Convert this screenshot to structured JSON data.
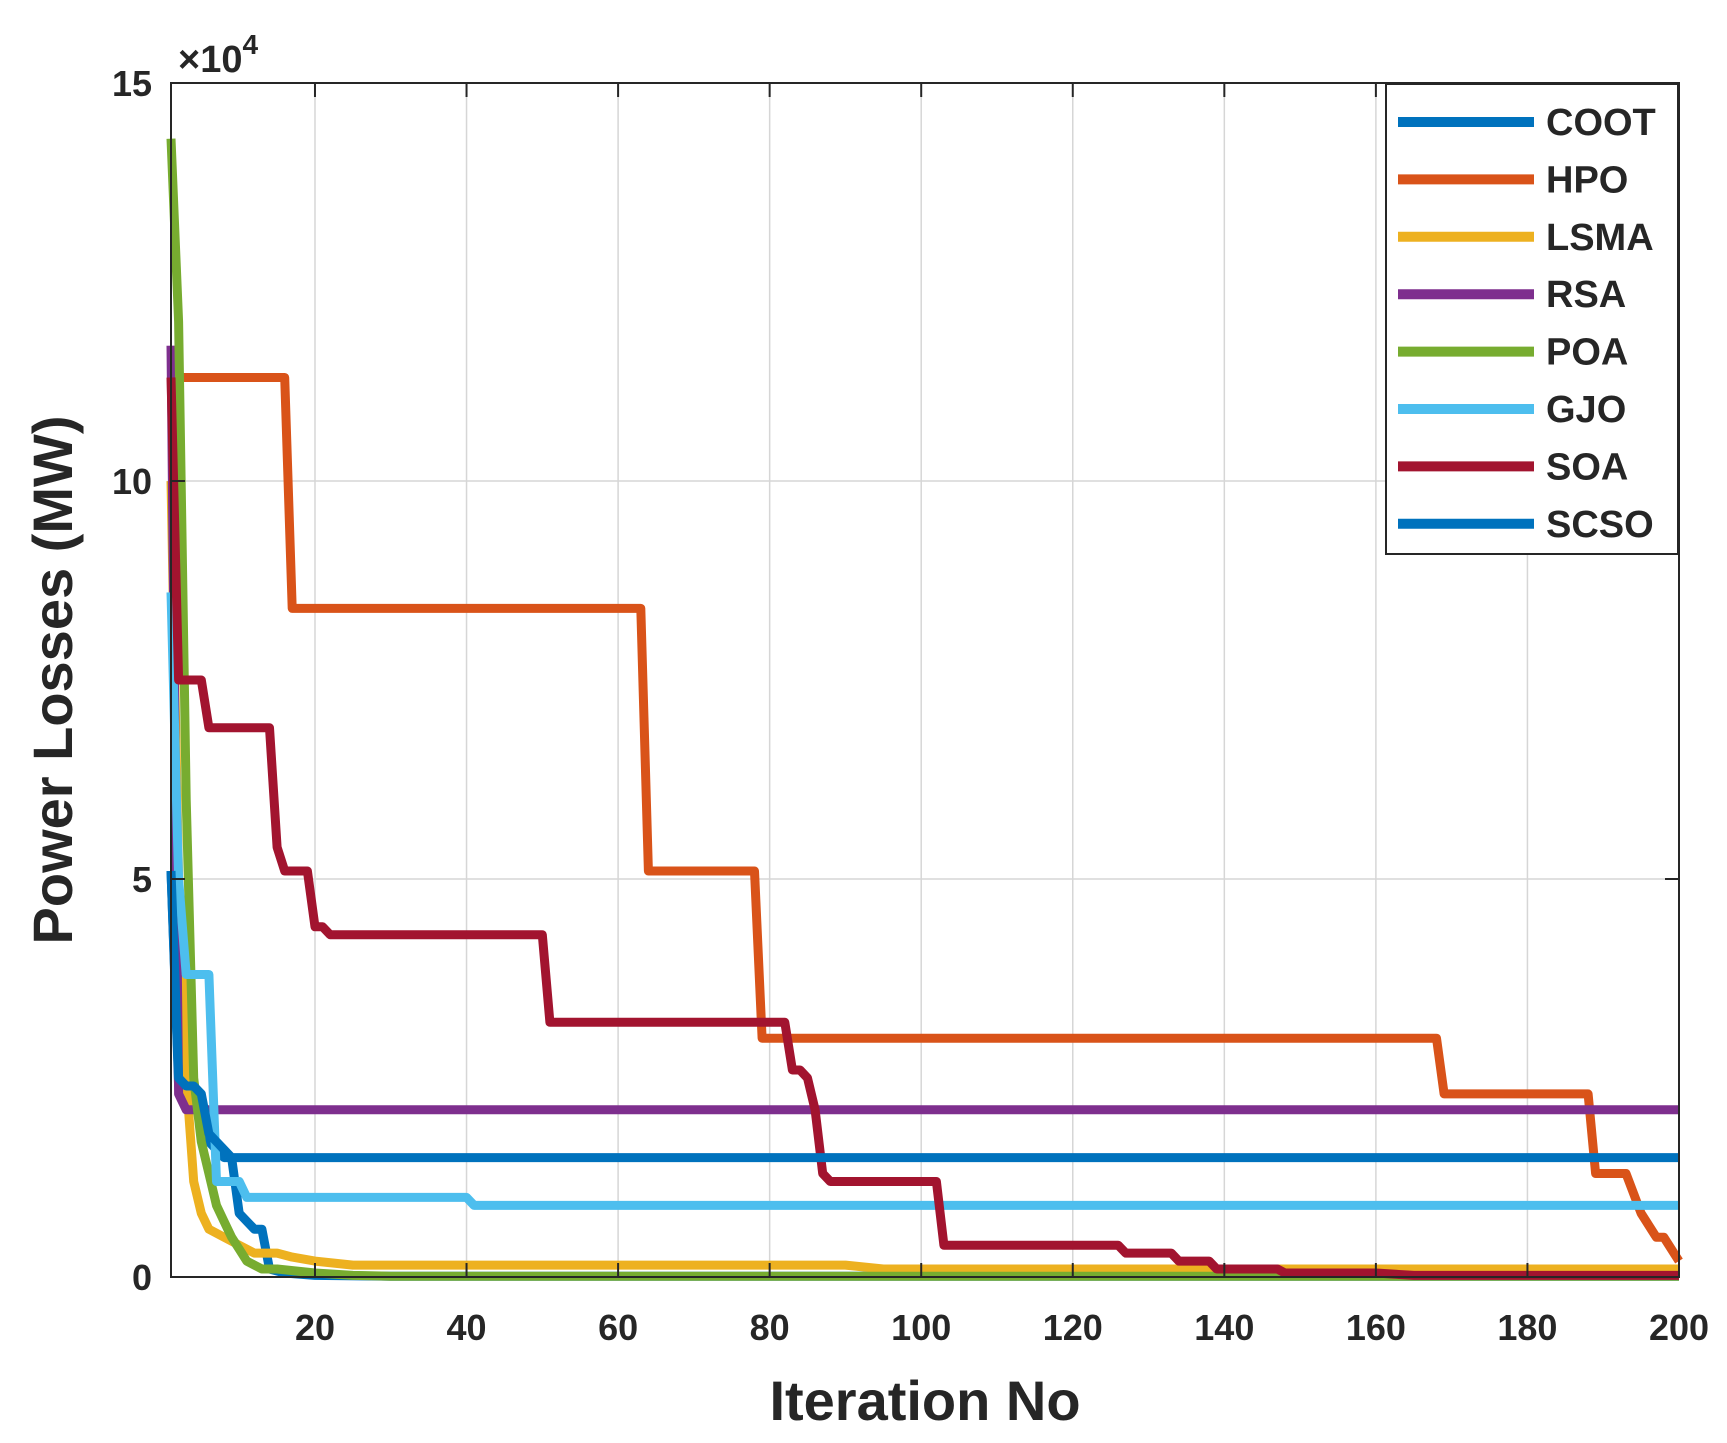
{
  "chart_data": {
    "type": "line",
    "title": "",
    "xlabel": "Iteration No",
    "ylabel": "Power Losses (MW)",
    "y_exponent_label": "×10",
    "y_exponent_power": "4",
    "xlim": [
      1,
      200
    ],
    "ylim": [
      0,
      15
    ],
    "xticks": [
      20,
      40,
      60,
      80,
      100,
      120,
      140,
      160,
      180,
      200
    ],
    "xtick_labels": [
      "20",
      "40",
      "60",
      "80",
      "100",
      "120",
      "140",
      "160",
      "180",
      "200"
    ],
    "yticks": [
      0,
      5,
      10,
      15
    ],
    "ytick_labels": [
      "0",
      "5",
      "10",
      "15"
    ],
    "grid": true,
    "legend_position": "top-right",
    "series": [
      {
        "name": "COOT",
        "color": "#0072BD",
        "points": [
          [
            1,
            5.1
          ],
          [
            2,
            2.4
          ],
          [
            3,
            2.3
          ],
          [
            4,
            2.2
          ],
          [
            5,
            2.2
          ],
          [
            6,
            1.7
          ],
          [
            7,
            1.6
          ],
          [
            8,
            1.5
          ],
          [
            9,
            1.5
          ],
          [
            10,
            0.8
          ],
          [
            11,
            0.7
          ],
          [
            12,
            0.6
          ],
          [
            13,
            0.6
          ],
          [
            14,
            0.1
          ],
          [
            16,
            0.05
          ],
          [
            20,
            0.02
          ],
          [
            30,
            0.01
          ],
          [
            200,
            0.01
          ]
        ]
      },
      {
        "name": "HPO",
        "color": "#D95319",
        "points": [
          [
            1,
            11.3
          ],
          [
            16,
            11.3
          ],
          [
            17,
            8.4
          ],
          [
            63,
            8.4
          ],
          [
            64,
            5.1
          ],
          [
            78,
            5.1
          ],
          [
            79,
            3.0
          ],
          [
            168,
            3.0
          ],
          [
            169,
            2.3
          ],
          [
            188,
            2.3
          ],
          [
            189,
            1.3
          ],
          [
            193,
            1.3
          ],
          [
            195,
            0.8
          ],
          [
            197,
            0.5
          ],
          [
            198,
            0.5
          ],
          [
            200,
            0.2
          ]
        ]
      },
      {
        "name": "LSMA",
        "color": "#EDB120",
        "points": [
          [
            1,
            10.0
          ],
          [
            2,
            5.0
          ],
          [
            3,
            2.5
          ],
          [
            4,
            1.2
          ],
          [
            5,
            0.8
          ],
          [
            6,
            0.6
          ],
          [
            8,
            0.5
          ],
          [
            10,
            0.4
          ],
          [
            12,
            0.3
          ],
          [
            15,
            0.3
          ],
          [
            17,
            0.25
          ],
          [
            20,
            0.2
          ],
          [
            25,
            0.15
          ],
          [
            90,
            0.15
          ],
          [
            95,
            0.1
          ],
          [
            200,
            0.1
          ]
        ]
      },
      {
        "name": "RSA",
        "color": "#7E2F8E",
        "points": [
          [
            1,
            11.7
          ],
          [
            2,
            2.3
          ],
          [
            3,
            2.1
          ],
          [
            4,
            2.1
          ],
          [
            6,
            2.1
          ],
          [
            15,
            2.1
          ],
          [
            20,
            2.1
          ],
          [
            200,
            2.1
          ]
        ]
      },
      {
        "name": "POA",
        "color": "#77AC30",
        "points": [
          [
            1,
            14.3
          ],
          [
            2,
            12.0
          ],
          [
            3,
            6.0
          ],
          [
            4,
            2.5
          ],
          [
            5,
            1.7
          ],
          [
            6,
            1.3
          ],
          [
            7,
            0.9
          ],
          [
            8,
            0.7
          ],
          [
            9,
            0.5
          ],
          [
            10,
            0.35
          ],
          [
            11,
            0.2
          ],
          [
            12,
            0.15
          ],
          [
            13,
            0.1
          ],
          [
            15,
            0.1
          ],
          [
            20,
            0.05
          ],
          [
            25,
            0.02
          ],
          [
            30,
            0.01
          ],
          [
            200,
            0.01
          ]
        ]
      },
      {
        "name": "GJO",
        "color": "#4DBEEE",
        "points": [
          [
            1,
            8.6
          ],
          [
            2,
            5.0
          ],
          [
            3,
            3.8
          ],
          [
            6,
            3.8
          ],
          [
            7,
            1.2
          ],
          [
            8,
            1.2
          ],
          [
            10,
            1.2
          ],
          [
            11,
            1.0
          ],
          [
            12,
            1.0
          ],
          [
            40,
            1.0
          ],
          [
            41,
            0.9
          ],
          [
            200,
            0.9
          ]
        ]
      },
      {
        "name": "SOA",
        "color": "#A2142F",
        "points": [
          [
            1,
            11.3
          ],
          [
            2,
            7.5
          ],
          [
            5,
            7.5
          ],
          [
            6,
            6.9
          ],
          [
            14,
            6.9
          ],
          [
            15,
            5.4
          ],
          [
            16,
            5.1
          ],
          [
            19,
            5.1
          ],
          [
            20,
            4.4
          ],
          [
            21,
            4.4
          ],
          [
            22,
            4.3
          ],
          [
            50,
            4.3
          ],
          [
            51,
            3.2
          ],
          [
            82,
            3.2
          ],
          [
            83,
            2.6
          ],
          [
            84,
            2.6
          ],
          [
            85,
            2.5
          ],
          [
            86,
            2.1
          ],
          [
            87,
            1.3
          ],
          [
            88,
            1.2
          ],
          [
            89,
            1.2
          ],
          [
            102,
            1.2
          ],
          [
            103,
            0.4
          ],
          [
            104,
            0.4
          ],
          [
            126,
            0.4
          ],
          [
            127,
            0.3
          ],
          [
            133,
            0.3
          ],
          [
            134,
            0.2
          ],
          [
            138,
            0.2
          ],
          [
            139,
            0.1
          ],
          [
            147,
            0.1
          ],
          [
            148,
            0.05
          ],
          [
            160,
            0.05
          ],
          [
            165,
            0.02
          ],
          [
            200,
            0.02
          ]
        ]
      },
      {
        "name": "SCSO",
        "color": "#0072BD",
        "points": [
          [
            1,
            5.1
          ],
          [
            2,
            2.5
          ],
          [
            3,
            2.4
          ],
          [
            4,
            2.4
          ],
          [
            5,
            2.3
          ],
          [
            6,
            1.8
          ],
          [
            7,
            1.7
          ],
          [
            8,
            1.6
          ],
          [
            9,
            1.5
          ],
          [
            200,
            1.5
          ]
        ]
      }
    ]
  }
}
